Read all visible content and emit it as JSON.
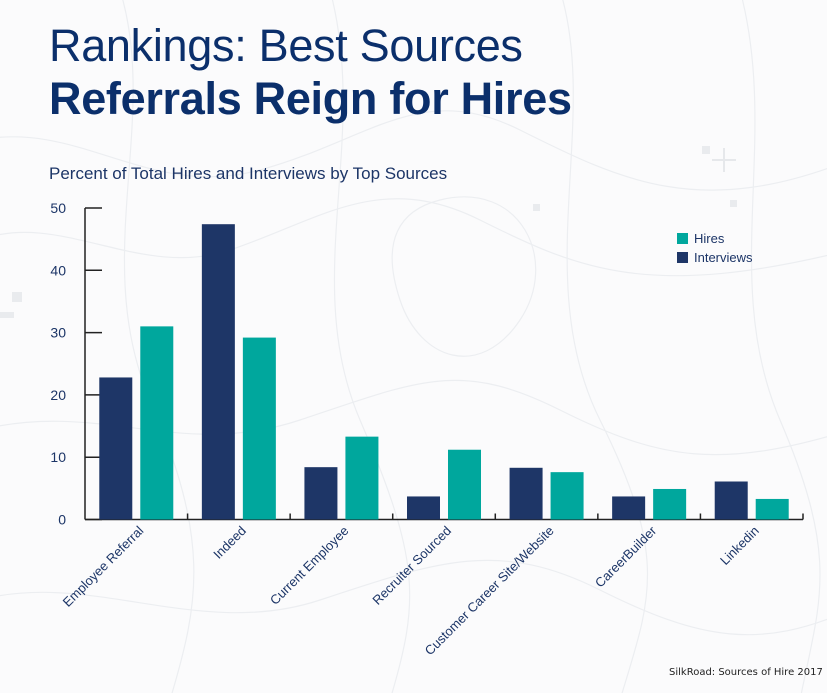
{
  "header": {
    "title_line1": "Rankings: Best Sources",
    "title_line2": "Referrals Reign for Hires"
  },
  "source_note": "SilkRoad: Sources of Hire 2017",
  "colors": {
    "title": "#0b2f6b",
    "interviews": "#1e3667",
    "hires": "#00a79d",
    "axis": "#222222"
  },
  "chart_data": {
    "type": "bar",
    "title": "Percent of Total Hires and Interviews by Top Sources",
    "xlabel": "",
    "ylabel": "",
    "ylim": [
      0,
      50
    ],
    "yticks": [
      0,
      10,
      20,
      30,
      40,
      50
    ],
    "grid": false,
    "legend_position": "top-right",
    "categories": [
      "Employee Referral",
      "Indeed",
      "Current Employee",
      "Recruiter Sourced",
      "Customer Career Site/Website",
      "CareerBuilder",
      "Linkedin"
    ],
    "series": [
      {
        "name": "Interviews",
        "color": "#1e3667",
        "values": [
          22.8,
          47.4,
          8.4,
          3.7,
          8.3,
          3.7,
          6.1
        ]
      },
      {
        "name": "Hires",
        "color": "#00a79d",
        "values": [
          31.0,
          29.2,
          13.3,
          11.2,
          7.6,
          4.9,
          3.3
        ]
      }
    ],
    "legend": [
      "Hires",
      "Interviews"
    ]
  }
}
